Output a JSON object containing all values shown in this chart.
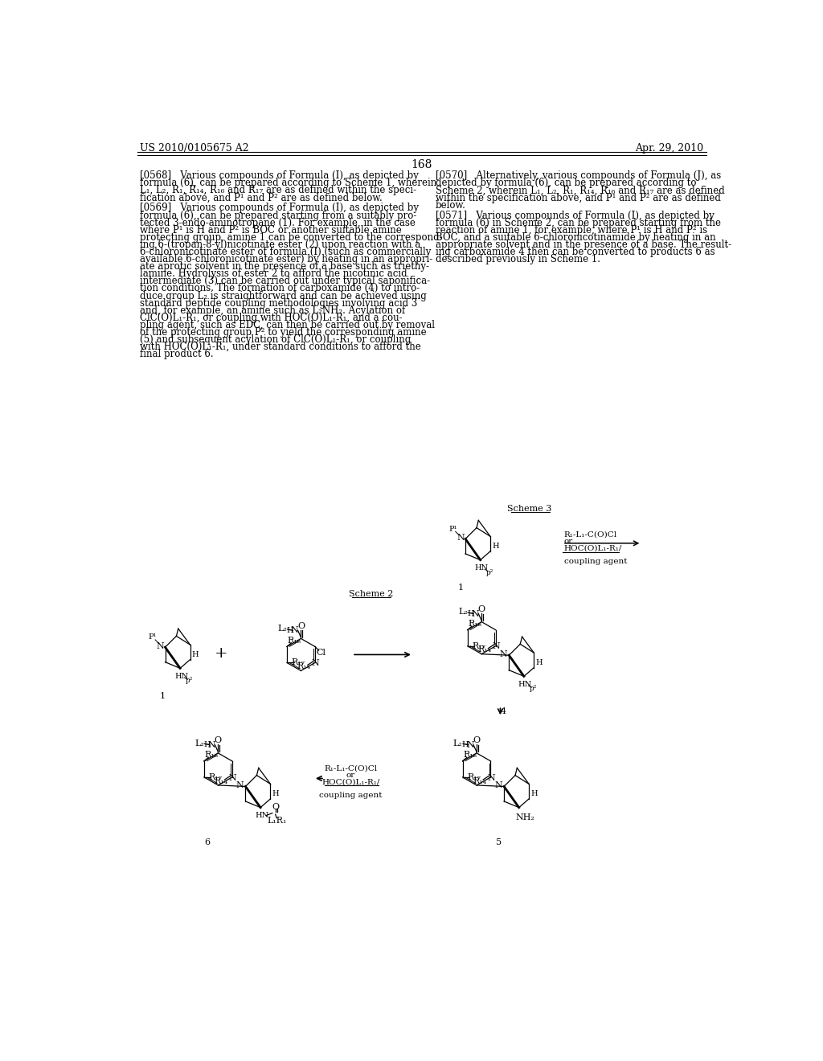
{
  "page_header_left": "US 2010/0105675 A2",
  "page_header_right": "Apr. 29, 2010",
  "page_number": "168",
  "background_color": "#ffffff",
  "text_color": "#000000",
  "scheme3_label": "Scheme 3",
  "scheme2_label": "Scheme 2",
  "font_size_body": 8.5,
  "font_size_header": 9.0,
  "font_size_page_num": 10.0,
  "p0568_lines": [
    "[0568]   Various compounds of Formula (I), as depicted by",
    "formula (6), can be prepared according to Scheme 1, wherein",
    "L₁, L₂, R₁, R₁₄, R₁₆ and R₁₇ are as defined within the speci-",
    "fication above, and P¹ and P² are as defined below."
  ],
  "p0569_lines": [
    "[0569]   Various compounds of Formula (I), as depicted by",
    "formula (6), can be prepared starting from a suitably pro-",
    "tected 3-endo-aminotropane (1). For example, in the case",
    "where P¹ is H and P² is BOC or another suitable amine",
    "protecting group, amine 1 can be converted to the correspond-",
    "ing 6-(tropan-8-yl)nicotinate ester (2) upon reaction with a",
    "6-chloronicotinate ester of formula (I) (such as commercially",
    "available 6-chloronicotinate ester) by heating in an appropri-",
    "ate aprotic solvent in the presence of a base such as triethy-",
    "lamine. Hydrolysis of ester 2 to afford the nicotinic acid",
    "intermediate (3) can be carried out under typical saponifica-",
    "tion conditions. The formation of carboxamide (4) to intro-",
    "duce group L₂ is straightforward and can be achieved using",
    "standard peptide coupling methodologies involving acid 3",
    "and, for example, an amine such as L₂NH₂. Acylation of",
    "ClC(O)L₁-R₁, or coupling with HOC(O)L₁-R₁, and a cou-",
    "pling agent, such as EDC, can then be carried out by removal",
    "of the protecting group P² to yield the corresponding amine",
    "(5) and subsequent acylation of ClC(O)L₁-R₁, or coupling",
    "with HOC(O)L₁-R₁, under standard conditions to afford the",
    "final product 6."
  ],
  "p0570_lines": [
    "[0570]   Alternatively, various compounds of Formula (J), as",
    "depicted by formula (6), can be prepared according to",
    "Scheme 2, wherein L₁, L₂, R₁, R₁₄, R₁₆ and R₁₇ are as defined",
    "within the specification above, and P¹ and P² are as defined",
    "below."
  ],
  "p0571_lines": [
    "[0571]   Various compounds of Formula (I), as depicted by",
    "formula (6) in Scheme 2, can be prepared starting from the",
    "reaction of amine 1, for example, where P¹ is H and P² is",
    "BOC, and a suitable 6-chloronicotinamide by heating in an",
    "appropriate solvent and in the presence of a base. The result-",
    "ing carboxamide 4 then can be converted to products 6 as",
    "described previously in Scheme 1."
  ]
}
